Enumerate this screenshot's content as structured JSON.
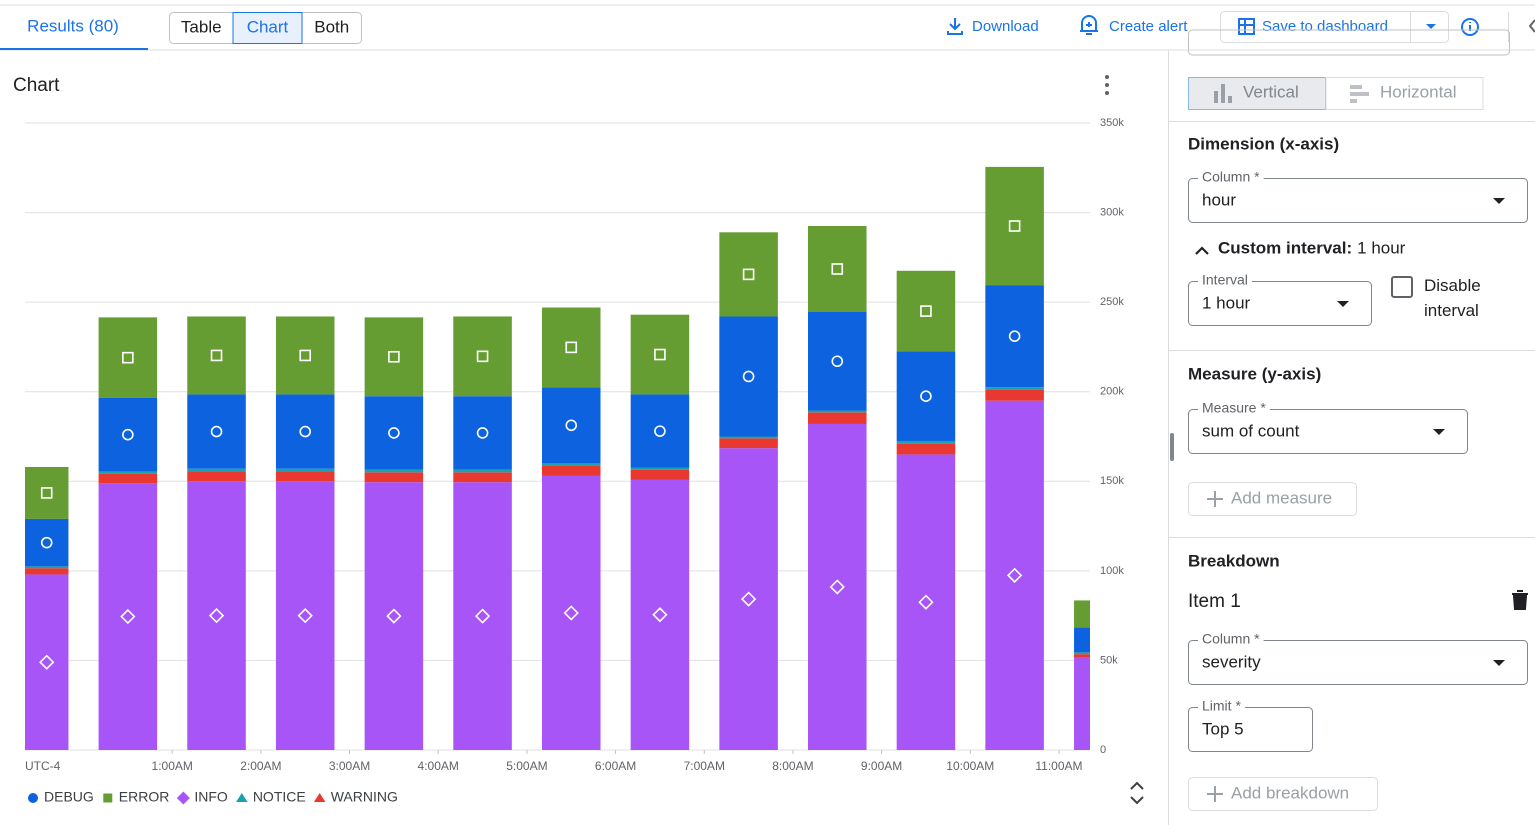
{
  "header": {
    "results_tab": "Results (80)",
    "view_toggle": {
      "options": [
        "Table",
        "Chart",
        "Both"
      ],
      "selected": "Chart"
    },
    "actions": {
      "download": "Download",
      "create_alert": "Create alert",
      "save_to_dashboard": "Save to dashboard"
    }
  },
  "chart_data": {
    "type": "bar",
    "stacked": true,
    "title": "Chart",
    "timezone": "UTC-4",
    "x": [
      -0.5,
      0.5,
      1.5,
      2.5,
      3.5,
      4.5,
      5.5,
      6.5,
      7.5,
      8.5,
      9.5,
      10.5,
      11.5
    ],
    "xlim": [
      -0.66,
      11.35
    ],
    "xticks": [
      {
        "value": 1,
        "label": "1:00AM"
      },
      {
        "value": 2,
        "label": "2:00AM"
      },
      {
        "value": 3,
        "label": "3:00AM"
      },
      {
        "value": 4,
        "label": "4:00AM"
      },
      {
        "value": 5,
        "label": "5:00AM"
      },
      {
        "value": 6,
        "label": "6:00AM"
      },
      {
        "value": 7,
        "label": "7:00AM"
      },
      {
        "value": 8,
        "label": "8:00AM"
      },
      {
        "value": 9,
        "label": "9:00AM"
      },
      {
        "value": 10,
        "label": "10:00AM"
      },
      {
        "value": 11,
        "label": "11:00AM"
      }
    ],
    "ylim": [
      0,
      350000
    ],
    "yticks": [
      0,
      {
        "value": 50000,
        "label": "50k"
      },
      {
        "value": 100000,
        "label": "100k"
      },
      {
        "value": 150000,
        "label": "150k"
      },
      {
        "value": 200000,
        "label": "200k"
      },
      {
        "value": 250000,
        "label": "250k"
      },
      {
        "value": 300000,
        "label": "300k"
      },
      {
        "value": 350000,
        "label": "350k"
      }
    ],
    "grid": true,
    "legend": "bottom-left",
    "series": [
      {
        "name": "INFO",
        "color": "#a855f7",
        "marker": "diamond",
        "values": [
          98000,
          149000,
          150000,
          150000,
          149500,
          149500,
          153000,
          151000,
          168500,
          182000,
          165000,
          195000,
          51500
        ]
      },
      {
        "name": "WARNING",
        "color": "#e8382f",
        "marker": "triangle",
        "values": [
          3500,
          5500,
          5500,
          5500,
          5500,
          5500,
          6000,
          5500,
          5500,
          6500,
          6000,
          6000,
          2000
        ]
      },
      {
        "name": "NOTICE",
        "color": "#17a2ad",
        "marker": "triangle",
        "values": [
          1000,
          1000,
          1500,
          1500,
          1500,
          1500,
          1000,
          1000,
          1000,
          1000,
          1500,
          1500,
          1000
        ]
      },
      {
        "name": "DEBUG",
        "color": "#0d62e0",
        "marker": "circle",
        "values": [
          26500,
          41000,
          41500,
          41500,
          41000,
          41000,
          42500,
          41000,
          67000,
          55000,
          50000,
          57000,
          14000
        ]
      },
      {
        "name": "ERROR",
        "color": "#659d33",
        "marker": "square",
        "values": [
          29000,
          45000,
          43500,
          43500,
          44000,
          44500,
          44500,
          44500,
          47000,
          48000,
          45000,
          66000,
          15000
        ]
      }
    ]
  },
  "config": {
    "orientation": {
      "options": [
        "Vertical",
        "Horizontal"
      ],
      "selected": "Vertical"
    },
    "dimension": {
      "heading": "Dimension (x-axis)",
      "column": {
        "label": "Column *",
        "value": "hour"
      },
      "custom_interval": {
        "label": "Custom interval:",
        "value": "1 hour"
      },
      "interval": {
        "label": "Interval",
        "value": "1 hour"
      },
      "disable_interval": {
        "label": "Disable interval",
        "checked": false
      }
    },
    "measure": {
      "heading": "Measure (y-axis)",
      "field": {
        "label": "Measure *",
        "value": "sum of count"
      },
      "add_button": "Add measure"
    },
    "breakdown": {
      "heading": "Breakdown",
      "item_title": "Item 1",
      "column": {
        "label": "Column *",
        "value": "severity"
      },
      "limit": {
        "label": "Limit *",
        "value": "Top 5"
      },
      "add_button": "Add breakdown"
    }
  }
}
